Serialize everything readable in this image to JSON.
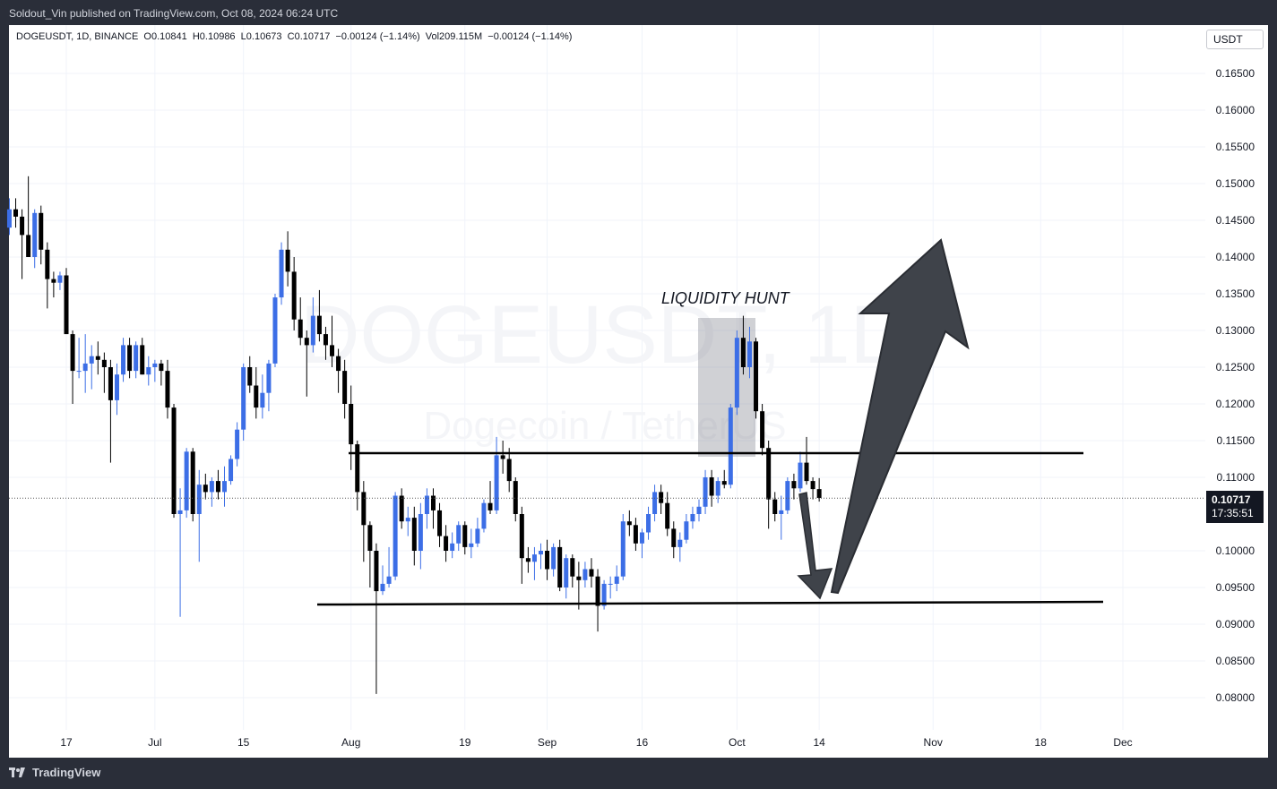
{
  "header": {
    "published": "Soldout_Vin published on TradingView.com, Oct 08, 2024 06:24 UTC"
  },
  "footer": {
    "brand": "TradingView"
  },
  "symbol": {
    "info": "DOGEUSDT, 1D, BINANCE  O0.10841  H0.10986  L0.10673  C0.10717  −0.00124 (−1.14%)  Vol209.115M  −0.00124 (−1.14%)"
  },
  "currency_button": "USDT",
  "last_price": {
    "value": "0.10717",
    "countdown": "17:35:51"
  },
  "watermark": {
    "ticker": "DOGEUSDT, 1D",
    "name": "Dogecoin / TetherUS"
  },
  "colors": {
    "up": "#3c6ee6",
    "down": "#000000",
    "grid": "#f0f3fa",
    "axis_text": "#131722",
    "arrow": "#3f434a"
  },
  "chart_data": {
    "type": "candlestick",
    "y_ticks": [
      "0.16500",
      "0.16000",
      "0.15500",
      "0.15000",
      "0.14500",
      "0.14000",
      "0.13500",
      "0.13000",
      "0.12500",
      "0.12000",
      "0.11500",
      "0.11000",
      "0.10000",
      "0.09500",
      "0.09000",
      "0.08500",
      "0.08000"
    ],
    "x_ticks": [
      "17",
      "Jul",
      "15",
      "Aug",
      "19",
      "Sep",
      "16",
      "Oct",
      "14",
      "Nov",
      "18",
      "Dec"
    ],
    "ylim": [
      0.077,
      0.17
    ],
    "annotations": {
      "label": "LIQUIDITY HUNT",
      "resistance": 0.1133,
      "support": 0.0928
    },
    "candles": [
      {
        "d": "2024-06-06",
        "o": 0.148,
        "h": 0.149,
        "l": 0.145,
        "c": 0.1455
      },
      {
        "d": "2024-06-07",
        "o": 0.1455,
        "h": 0.1485,
        "l": 0.139,
        "c": 0.144
      },
      {
        "d": "2024-06-08",
        "o": 0.144,
        "h": 0.148,
        "l": 0.143,
        "c": 0.1465
      },
      {
        "d": "2024-06-09",
        "o": 0.1465,
        "h": 0.148,
        "l": 0.144,
        "c": 0.1455
      },
      {
        "d": "2024-06-10",
        "o": 0.1455,
        "h": 0.1465,
        "l": 0.137,
        "c": 0.143
      },
      {
        "d": "2024-06-11",
        "o": 0.143,
        "h": 0.151,
        "l": 0.14,
        "c": 0.14
      },
      {
        "d": "2024-06-12",
        "o": 0.14,
        "h": 0.1465,
        "l": 0.1385,
        "c": 0.146
      },
      {
        "d": "2024-06-13",
        "o": 0.146,
        "h": 0.147,
        "l": 0.139,
        "c": 0.141
      },
      {
        "d": "2024-06-14",
        "o": 0.141,
        "h": 0.142,
        "l": 0.133,
        "c": 0.137
      },
      {
        "d": "2024-06-15",
        "o": 0.137,
        "h": 0.138,
        "l": 0.1345,
        "c": 0.1365
      },
      {
        "d": "2024-06-16",
        "o": 0.1365,
        "h": 0.138,
        "l": 0.1355,
        "c": 0.1375
      },
      {
        "d": "2024-06-17",
        "o": 0.1375,
        "h": 0.1385,
        "l": 0.13,
        "c": 0.1295
      },
      {
        "d": "2024-06-18",
        "o": 0.1295,
        "h": 0.13,
        "l": 0.12,
        "c": 0.1245
      },
      {
        "d": "2024-06-19",
        "o": 0.1245,
        "h": 0.129,
        "l": 0.1235,
        "c": 0.1245
      },
      {
        "d": "2024-06-20",
        "o": 0.1245,
        "h": 0.1295,
        "l": 0.1215,
        "c": 0.1255
      },
      {
        "d": "2024-06-21",
        "o": 0.1255,
        "h": 0.128,
        "l": 0.122,
        "c": 0.1265
      },
      {
        "d": "2024-06-22",
        "o": 0.1265,
        "h": 0.1285,
        "l": 0.124,
        "c": 0.126
      },
      {
        "d": "2024-06-23",
        "o": 0.126,
        "h": 0.127,
        "l": 0.1215,
        "c": 0.125
      },
      {
        "d": "2024-06-24",
        "o": 0.125,
        "h": 0.126,
        "l": 0.112,
        "c": 0.1205
      },
      {
        "d": "2024-06-25",
        "o": 0.1205,
        "h": 0.1255,
        "l": 0.1185,
        "c": 0.124
      },
      {
        "d": "2024-06-26",
        "o": 0.124,
        "h": 0.129,
        "l": 0.123,
        "c": 0.128
      },
      {
        "d": "2024-06-27",
        "o": 0.128,
        "h": 0.129,
        "l": 0.1235,
        "c": 0.1245
      },
      {
        "d": "2024-06-28",
        "o": 0.1245,
        "h": 0.1285,
        "l": 0.1235,
        "c": 0.128
      },
      {
        "d": "2024-06-29",
        "o": 0.128,
        "h": 0.129,
        "l": 0.124,
        "c": 0.124
      },
      {
        "d": "2024-06-30",
        "o": 0.124,
        "h": 0.1265,
        "l": 0.1225,
        "c": 0.125
      },
      {
        "d": "2024-07-01",
        "o": 0.125,
        "h": 0.126,
        "l": 0.123,
        "c": 0.1255
      },
      {
        "d": "2024-07-02",
        "o": 0.1255,
        "h": 0.126,
        "l": 0.1225,
        "c": 0.1245
      },
      {
        "d": "2024-07-03",
        "o": 0.1245,
        "h": 0.126,
        "l": 0.118,
        "c": 0.1195
      },
      {
        "d": "2024-07-04",
        "o": 0.1195,
        "h": 0.12,
        "l": 0.1045,
        "c": 0.105
      },
      {
        "d": "2024-07-05",
        "o": 0.105,
        "h": 0.1085,
        "l": 0.091,
        "c": 0.1055
      },
      {
        "d": "2024-07-06",
        "o": 0.1055,
        "h": 0.114,
        "l": 0.1045,
        "c": 0.1135
      },
      {
        "d": "2024-07-07",
        "o": 0.1135,
        "h": 0.114,
        "l": 0.104,
        "c": 0.105
      },
      {
        "d": "2024-07-08",
        "o": 0.105,
        "h": 0.111,
        "l": 0.0985,
        "c": 0.109
      },
      {
        "d": "2024-07-09",
        "o": 0.109,
        "h": 0.1105,
        "l": 0.107,
        "c": 0.108
      },
      {
        "d": "2024-07-10",
        "o": 0.108,
        "h": 0.11,
        "l": 0.106,
        "c": 0.1095
      },
      {
        "d": "2024-07-11",
        "o": 0.1095,
        "h": 0.111,
        "l": 0.107,
        "c": 0.108
      },
      {
        "d": "2024-07-12",
        "o": 0.108,
        "h": 0.1115,
        "l": 0.106,
        "c": 0.1095
      },
      {
        "d": "2024-07-13",
        "o": 0.1095,
        "h": 0.113,
        "l": 0.109,
        "c": 0.1125
      },
      {
        "d": "2024-07-14",
        "o": 0.1125,
        "h": 0.1175,
        "l": 0.1115,
        "c": 0.1165
      },
      {
        "d": "2024-07-15",
        "o": 0.1165,
        "h": 0.1255,
        "l": 0.115,
        "c": 0.125
      },
      {
        "d": "2024-07-16",
        "o": 0.125,
        "h": 0.1265,
        "l": 0.1215,
        "c": 0.1225
      },
      {
        "d": "2024-07-17",
        "o": 0.1225,
        "h": 0.125,
        "l": 0.118,
        "c": 0.1195
      },
      {
        "d": "2024-07-18",
        "o": 0.1195,
        "h": 0.124,
        "l": 0.118,
        "c": 0.1215
      },
      {
        "d": "2024-07-19",
        "o": 0.1215,
        "h": 0.126,
        "l": 0.119,
        "c": 0.1255
      },
      {
        "d": "2024-07-20",
        "o": 0.1255,
        "h": 0.135,
        "l": 0.125,
        "c": 0.1345
      },
      {
        "d": "2024-07-21",
        "o": 0.1345,
        "h": 0.142,
        "l": 0.1335,
        "c": 0.141
      },
      {
        "d": "2024-07-22",
        "o": 0.141,
        "h": 0.1435,
        "l": 0.136,
        "c": 0.138
      },
      {
        "d": "2024-07-23",
        "o": 0.138,
        "h": 0.14,
        "l": 0.13,
        "c": 0.1315
      },
      {
        "d": "2024-07-24",
        "o": 0.1315,
        "h": 0.1345,
        "l": 0.128,
        "c": 0.129
      },
      {
        "d": "2024-07-25",
        "o": 0.129,
        "h": 0.13,
        "l": 0.121,
        "c": 0.128
      },
      {
        "d": "2024-07-26",
        "o": 0.128,
        "h": 0.1345,
        "l": 0.127,
        "c": 0.132
      },
      {
        "d": "2024-07-27",
        "o": 0.132,
        "h": 0.1355,
        "l": 0.1285,
        "c": 0.1295
      },
      {
        "d": "2024-07-28",
        "o": 0.1295,
        "h": 0.1305,
        "l": 0.126,
        "c": 0.128
      },
      {
        "d": "2024-07-29",
        "o": 0.128,
        "h": 0.132,
        "l": 0.125,
        "c": 0.1265
      },
      {
        "d": "2024-07-30",
        "o": 0.1265,
        "h": 0.1275,
        "l": 0.1215,
        "c": 0.1245
      },
      {
        "d": "2024-07-31",
        "o": 0.1245,
        "h": 0.126,
        "l": 0.118,
        "c": 0.12
      },
      {
        "d": "2024-08-01",
        "o": 0.12,
        "h": 0.1225,
        "l": 0.111,
        "c": 0.1145
      },
      {
        "d": "2024-08-02",
        "o": 0.1145,
        "h": 0.115,
        "l": 0.1055,
        "c": 0.108
      },
      {
        "d": "2024-08-03",
        "o": 0.108,
        "h": 0.1095,
        "l": 0.0985,
        "c": 0.1035
      },
      {
        "d": "2024-08-04",
        "o": 0.1035,
        "h": 0.104,
        "l": 0.095,
        "c": 0.1
      },
      {
        "d": "2024-08-05",
        "o": 0.1,
        "h": 0.101,
        "l": 0.0805,
        "c": 0.0945
      },
      {
        "d": "2024-08-06",
        "o": 0.0945,
        "h": 0.098,
        "l": 0.094,
        "c": 0.0955
      },
      {
        "d": "2024-08-07",
        "o": 0.0955,
        "h": 0.1005,
        "l": 0.095,
        "c": 0.0965
      },
      {
        "d": "2024-08-08",
        "o": 0.0965,
        "h": 0.108,
        "l": 0.096,
        "c": 0.1075
      },
      {
        "d": "2024-08-09",
        "o": 0.1075,
        "h": 0.1085,
        "l": 0.103,
        "c": 0.104
      },
      {
        "d": "2024-08-10",
        "o": 0.104,
        "h": 0.106,
        "l": 0.102,
        "c": 0.1045
      },
      {
        "d": "2024-08-11",
        "o": 0.1045,
        "h": 0.106,
        "l": 0.098,
        "c": 0.1
      },
      {
        "d": "2024-08-12",
        "o": 0.1,
        "h": 0.1065,
        "l": 0.0975,
        "c": 0.105
      },
      {
        "d": "2024-08-13",
        "o": 0.105,
        "h": 0.1085,
        "l": 0.103,
        "c": 0.1075
      },
      {
        "d": "2024-08-14",
        "o": 0.1075,
        "h": 0.1085,
        "l": 0.103,
        "c": 0.1055
      },
      {
        "d": "2024-08-15",
        "o": 0.1055,
        "h": 0.1065,
        "l": 0.1005,
        "c": 0.102
      },
      {
        "d": "2024-08-16",
        "o": 0.102,
        "h": 0.1035,
        "l": 0.0985,
        "c": 0.1
      },
      {
        "d": "2024-08-17",
        "o": 0.1,
        "h": 0.1025,
        "l": 0.099,
        "c": 0.101
      },
      {
        "d": "2024-08-18",
        "o": 0.101,
        "h": 0.104,
        "l": 0.1,
        "c": 0.1035
      },
      {
        "d": "2024-08-19",
        "o": 0.1035,
        "h": 0.104,
        "l": 0.0995,
        "c": 0.1005
      },
      {
        "d": "2024-08-20",
        "o": 0.1005,
        "h": 0.103,
        "l": 0.099,
        "c": 0.101
      },
      {
        "d": "2024-08-21",
        "o": 0.101,
        "h": 0.1045,
        "l": 0.1005,
        "c": 0.103
      },
      {
        "d": "2024-08-22",
        "o": 0.103,
        "h": 0.107,
        "l": 0.1025,
        "c": 0.1065
      },
      {
        "d": "2024-08-23",
        "o": 0.1065,
        "h": 0.1095,
        "l": 0.105,
        "c": 0.1055
      },
      {
        "d": "2024-08-24",
        "o": 0.1055,
        "h": 0.1155,
        "l": 0.105,
        "c": 0.113
      },
      {
        "d": "2024-08-25",
        "o": 0.113,
        "h": 0.115,
        "l": 0.1105,
        "c": 0.1125
      },
      {
        "d": "2024-08-26",
        "o": 0.1125,
        "h": 0.114,
        "l": 0.108,
        "c": 0.1095
      },
      {
        "d": "2024-08-27",
        "o": 0.1095,
        "h": 0.11,
        "l": 0.104,
        "c": 0.105
      },
      {
        "d": "2024-08-28",
        "o": 0.105,
        "h": 0.106,
        "l": 0.0955,
        "c": 0.099
      },
      {
        "d": "2024-08-29",
        "o": 0.099,
        "h": 0.1005,
        "l": 0.097,
        "c": 0.0985
      },
      {
        "d": "2024-08-30",
        "o": 0.0985,
        "h": 0.1005,
        "l": 0.096,
        "c": 0.0995
      },
      {
        "d": "2024-08-31",
        "o": 0.0995,
        "h": 0.101,
        "l": 0.0975,
        "c": 0.1
      },
      {
        "d": "2024-09-01",
        "o": 0.1,
        "h": 0.1015,
        "l": 0.096,
        "c": 0.0975
      },
      {
        "d": "2024-09-02",
        "o": 0.0975,
        "h": 0.101,
        "l": 0.0965,
        "c": 0.1005
      },
      {
        "d": "2024-09-03",
        "o": 0.1005,
        "h": 0.1015,
        "l": 0.0945,
        "c": 0.095
      },
      {
        "d": "2024-09-04",
        "o": 0.095,
        "h": 0.0995,
        "l": 0.0935,
        "c": 0.099
      },
      {
        "d": "2024-09-05",
        "o": 0.099,
        "h": 0.0995,
        "l": 0.095,
        "c": 0.0965
      },
      {
        "d": "2024-09-06",
        "o": 0.0965,
        "h": 0.0985,
        "l": 0.092,
        "c": 0.096
      },
      {
        "d": "2024-09-07",
        "o": 0.096,
        "h": 0.0985,
        "l": 0.095,
        "c": 0.0975
      },
      {
        "d": "2024-09-08",
        "o": 0.0975,
        "h": 0.099,
        "l": 0.095,
        "c": 0.0965
      },
      {
        "d": "2024-09-09",
        "o": 0.0965,
        "h": 0.0975,
        "l": 0.089,
        "c": 0.0925
      },
      {
        "d": "2024-09-10",
        "o": 0.0925,
        "h": 0.096,
        "l": 0.092,
        "c": 0.0955
      },
      {
        "d": "2024-09-11",
        "o": 0.0955,
        "h": 0.0965,
        "l": 0.0935,
        "c": 0.0955
      },
      {
        "d": "2024-09-12",
        "o": 0.0955,
        "h": 0.098,
        "l": 0.0945,
        "c": 0.0965
      },
      {
        "d": "2024-09-13",
        "o": 0.0965,
        "h": 0.105,
        "l": 0.096,
        "c": 0.104
      },
      {
        "d": "2024-09-14",
        "o": 0.104,
        "h": 0.1055,
        "l": 0.102,
        "c": 0.1035
      },
      {
        "d": "2024-09-15",
        "o": 0.1035,
        "h": 0.1045,
        "l": 0.1,
        "c": 0.101
      },
      {
        "d": "2024-09-16",
        "o": 0.101,
        "h": 0.103,
        "l": 0.099,
        "c": 0.1025
      },
      {
        "d": "2024-09-17",
        "o": 0.1025,
        "h": 0.106,
        "l": 0.1015,
        "c": 0.105
      },
      {
        "d": "2024-09-18",
        "o": 0.105,
        "h": 0.109,
        "l": 0.104,
        "c": 0.108
      },
      {
        "d": "2024-09-19",
        "o": 0.108,
        "h": 0.109,
        "l": 0.105,
        "c": 0.1065
      },
      {
        "d": "2024-09-20",
        "o": 0.1065,
        "h": 0.108,
        "l": 0.102,
        "c": 0.103
      },
      {
        "d": "2024-09-21",
        "o": 0.103,
        "h": 0.104,
        "l": 0.099,
        "c": 0.1005
      },
      {
        "d": "2024-09-22",
        "o": 0.1005,
        "h": 0.1025,
        "l": 0.0985,
        "c": 0.1015
      },
      {
        "d": "2024-09-23",
        "o": 0.1015,
        "h": 0.105,
        "l": 0.101,
        "c": 0.104
      },
      {
        "d": "2024-09-24",
        "o": 0.104,
        "h": 0.106,
        "l": 0.103,
        "c": 0.105
      },
      {
        "d": "2024-09-25",
        "o": 0.105,
        "h": 0.107,
        "l": 0.104,
        "c": 0.106
      },
      {
        "d": "2024-09-26",
        "o": 0.106,
        "h": 0.111,
        "l": 0.105,
        "c": 0.11
      },
      {
        "d": "2024-09-27",
        "o": 0.11,
        "h": 0.111,
        "l": 0.106,
        "c": 0.1075
      },
      {
        "d": "2024-09-28",
        "o": 0.1075,
        "h": 0.11,
        "l": 0.1065,
        "c": 0.1095
      },
      {
        "d": "2024-09-29",
        "o": 0.1095,
        "h": 0.111,
        "l": 0.1085,
        "c": 0.109
      },
      {
        "d": "2024-09-30",
        "o": 0.109,
        "h": 0.12,
        "l": 0.1085,
        "c": 0.1195
      },
      {
        "d": "2024-10-01",
        "o": 0.1195,
        "h": 0.13,
        "l": 0.1185,
        "c": 0.129
      },
      {
        "d": "2024-10-02",
        "o": 0.129,
        "h": 0.132,
        "l": 0.124,
        "c": 0.125
      },
      {
        "d": "2024-10-03",
        "o": 0.125,
        "h": 0.1305,
        "l": 0.1235,
        "c": 0.1285
      },
      {
        "d": "2024-10-04",
        "o": 0.1285,
        "h": 0.129,
        "l": 0.118,
        "c": 0.119
      },
      {
        "d": "2024-10-05",
        "o": 0.119,
        "h": 0.12,
        "l": 0.113,
        "c": 0.114
      },
      {
        "d": "2024-10-06",
        "o": 0.114,
        "h": 0.115,
        "l": 0.103,
        "c": 0.107
      },
      {
        "d": "2024-10-07",
        "o": 0.107,
        "h": 0.108,
        "l": 0.104,
        "c": 0.105
      },
      {
        "d": "2024-10-08",
        "o": 0.105,
        "h": 0.1075,
        "l": 0.1015,
        "c": 0.1055
      },
      {
        "d": "2024-10-09",
        "o": 0.1055,
        "h": 0.11,
        "l": 0.105,
        "c": 0.1095
      },
      {
        "d": "2024-10-10",
        "o": 0.1095,
        "h": 0.1105,
        "l": 0.107,
        "c": 0.1085
      },
      {
        "d": "2024-10-11",
        "o": 0.1085,
        "h": 0.1135,
        "l": 0.108,
        "c": 0.112
      },
      {
        "d": "2024-10-12",
        "o": 0.112,
        "h": 0.1155,
        "l": 0.109,
        "c": 0.1095
      },
      {
        "d": "2024-10-13",
        "o": 0.1095,
        "h": 0.11,
        "l": 0.107,
        "c": 0.1084
      },
      {
        "d": "2024-10-14",
        "o": 0.1084,
        "h": 0.1099,
        "l": 0.1067,
        "c": 0.1072
      }
    ]
  }
}
